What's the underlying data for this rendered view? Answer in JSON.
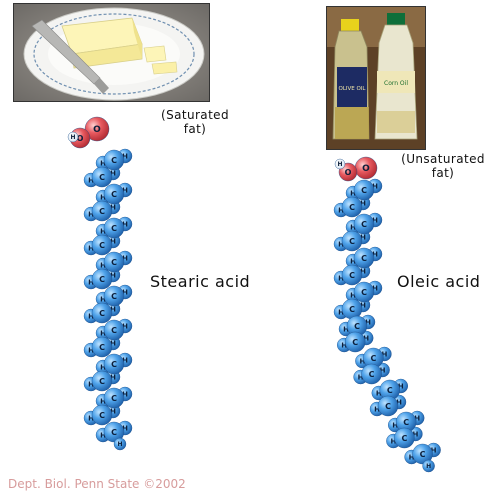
{
  "captions": {
    "saturated": "(Saturated\nfat)",
    "unsaturated": "(Unsaturated\nfat)"
  },
  "molecules": {
    "stearic": {
      "name": "Stearic acid",
      "carbon_count": 17
    },
    "oleic": {
      "name": "Oleic acid",
      "carbon_count": 17,
      "double_bond_kink": true
    }
  },
  "atoms": {
    "carbon": "C",
    "hydrogen": "H",
    "oxygen": "O"
  },
  "colors": {
    "carbon_hydrogen": "#3f8fdc",
    "oxygen": "#e0505a",
    "credit": "#d79c9c"
  },
  "photos": {
    "butter": "butter-on-plate",
    "oil": "olive-oil-and-corn-oil-bottles",
    "olive_oil_label": "OLIVE OIL",
    "corn_oil_label": "Corn Oil"
  },
  "credit": "Dept. Biol. Penn State ©2002"
}
